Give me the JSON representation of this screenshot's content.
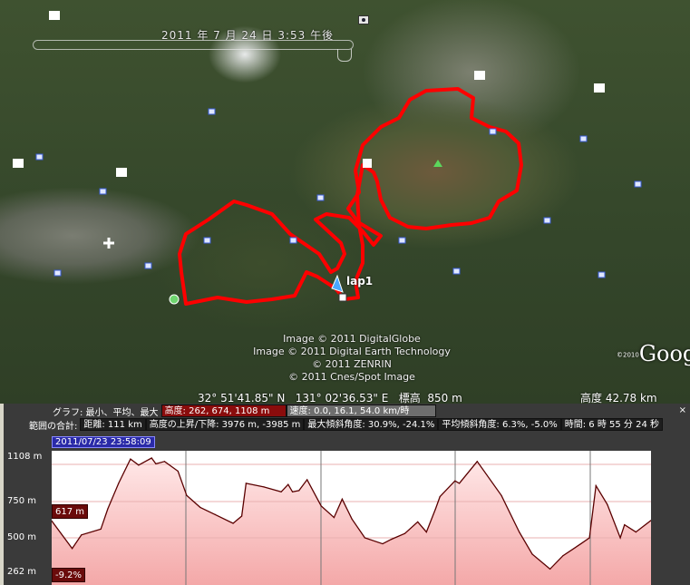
{
  "map": {
    "timestamp": "2011 年 7 月 24 日  3:53 午後",
    "lap_label": "lap1",
    "credits": [
      "Image © 2011 DigitalGlobe",
      "Image © 2011 Digital Earth Technology",
      "© 2011 ZENRIN",
      "© 2011 Cnes/Spot Image"
    ],
    "logo": "Google",
    "logo_year": "©2010",
    "coordinates": "32° 51'41.85\" N   131° 02'36.53\" E   標高  850 m",
    "eye_altitude": "高度   42.78 km",
    "track_color": "#ff0000"
  },
  "stats": {
    "graph_label": "グラフ: 最小、平均、最大",
    "elevation": "高度: 262, 674, 1108 m",
    "speed": "速度: 0.0, 16.1, 54.0 km/時",
    "range_label": "範囲の合計:",
    "distance": "距離: 111 km",
    "gain_loss": "高度の上昇/下降: 3976 m, -3985 m",
    "max_slope": "最大傾斜角度: 30.9%, -24.1%",
    "avg_slope": "平均傾斜角度: 6.3%, -5.0%",
    "time": "時間: 6 時 55 分 24 秒",
    "close": "×"
  },
  "chart_data": {
    "type": "area",
    "cursor_date": "2011/07/23 23:58:09",
    "cursor_elevation": "617 m",
    "cursor_slope": "-9.2%",
    "yticks": [
      "1108 m",
      "750 m",
      "500 m",
      "262 m"
    ],
    "ylim": [
      262,
      1108
    ],
    "xlim": [
      0,
      111
    ],
    "grid": true,
    "line_color": "#5a0000",
    "fill_color": "#f4a8a8",
    "x": [
      0,
      3.8,
      5.5,
      9.1,
      10.4,
      12.4,
      14.6,
      16.1,
      18.5,
      19.3,
      20.9,
      23.4,
      25.0,
      27.5,
      30.3,
      33.6,
      35.2,
      36.0,
      39.3,
      42.5,
      43.8,
      44.6,
      45.8,
      47.3,
      49.9,
      52.3,
      53.8,
      55.6,
      58.0,
      61.3,
      62.9,
      65.4,
      67.8,
      69.4,
      71.1,
      71.9,
      74.7,
      75.5,
      78.8,
      83.3,
      86.6,
      89.0,
      92.3,
      94.7,
      98.0,
      99.6,
      100.8,
      102.9,
      105.3,
      106.1,
      108.2,
      111
    ],
    "y": [
      617,
      428,
      520,
      560,
      700,
      900,
      1100,
      1050,
      1108,
      1060,
      1080,
      1000,
      800,
      710,
      660,
      600,
      650,
      900,
      870,
      830,
      890,
      830,
      840,
      930,
      720,
      640,
      770,
      630,
      500,
      460,
      490,
      530,
      610,
      540,
      700,
      790,
      920,
      900,
      1080,
      800,
      540,
      390,
      290,
      380,
      460,
      500,
      880,
      730,
      500,
      590,
      540,
      620
    ]
  }
}
